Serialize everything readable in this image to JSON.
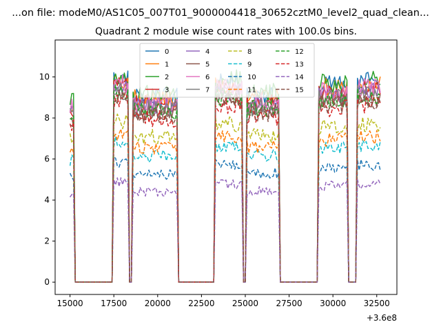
{
  "chart_data": {
    "type": "line",
    "suptitle": "...on file: modeM0/AS1C05_007T01_9000004418_30652cztM0_level2_quad_clean...",
    "title": "Quadrant 2 module wise count rates with 100.0s bins.",
    "xlabel": "",
    "ylabel": "",
    "x_offset_label": "+3.6e8",
    "xlim": [
      14150,
      33650
    ],
    "ylim": [
      -0.6,
      11.8
    ],
    "xticks": [
      15000,
      17500,
      20000,
      22500,
      25000,
      27500,
      30000,
      32500
    ],
    "xtick_labels": [
      "15000",
      "17500",
      "20000",
      "22500",
      "25000",
      "27500",
      "30000",
      "32500"
    ],
    "yticks": [
      0,
      2,
      4,
      6,
      8,
      10
    ],
    "ytick_labels": [
      "0",
      "2",
      "4",
      "6",
      "8",
      "10"
    ],
    "x_range": {
      "start": 15000,
      "stop": 32700,
      "step": 100
    },
    "on_segments": [
      [
        15000,
        15200
      ],
      [
        17500,
        18300
      ],
      [
        18600,
        21100
      ],
      [
        23300,
        24800
      ],
      [
        25100,
        26900
      ],
      [
        29200,
        30800
      ],
      [
        31400,
        32700
      ]
    ],
    "series": [
      {
        "name": "0",
        "color": "#1f77b4",
        "dash": "solid",
        "level": 9.4
      },
      {
        "name": "1",
        "color": "#ff7f0e",
        "dash": "solid",
        "level": 9.3
      },
      {
        "name": "2",
        "color": "#2ca02c",
        "dash": "solid",
        "level": 9.5
      },
      {
        "name": "3",
        "color": "#d62728",
        "dash": "solid",
        "level": 9.0
      },
      {
        "name": "4",
        "color": "#9467bd",
        "dash": "solid",
        "level": 8.9
      },
      {
        "name": "5",
        "color": "#8c564b",
        "dash": "solid",
        "level": 8.6
      },
      {
        "name": "6",
        "color": "#e377c2",
        "dash": "solid",
        "level": 9.1
      },
      {
        "name": "7",
        "color": "#7f7f7f",
        "dash": "solid",
        "level": 8.8
      },
      {
        "name": "8",
        "color": "#bcbd22",
        "dash": "dashed",
        "level": 7.4
      },
      {
        "name": "9",
        "color": "#17becf",
        "dash": "dashed",
        "level": 6.4
      },
      {
        "name": "10",
        "color": "#1f77b4",
        "dash": "dashed",
        "level": 5.5
      },
      {
        "name": "11",
        "color": "#ff7f0e",
        "dash": "dashed",
        "level": 6.8
      },
      {
        "name": "12",
        "color": "#2ca02c",
        "dash": "dashed",
        "level": 8.7
      },
      {
        "name": "13",
        "color": "#d62728",
        "dash": "dashed",
        "level": 8.3
      },
      {
        "name": "14",
        "color": "#9467bd",
        "dash": "dashed",
        "level": 4.6
      },
      {
        "name": "15",
        "color": "#8c564b",
        "dash": "dashed",
        "level": 8.5
      }
    ],
    "legend": {
      "placement": "upper-center",
      "columns": 4
    }
  }
}
